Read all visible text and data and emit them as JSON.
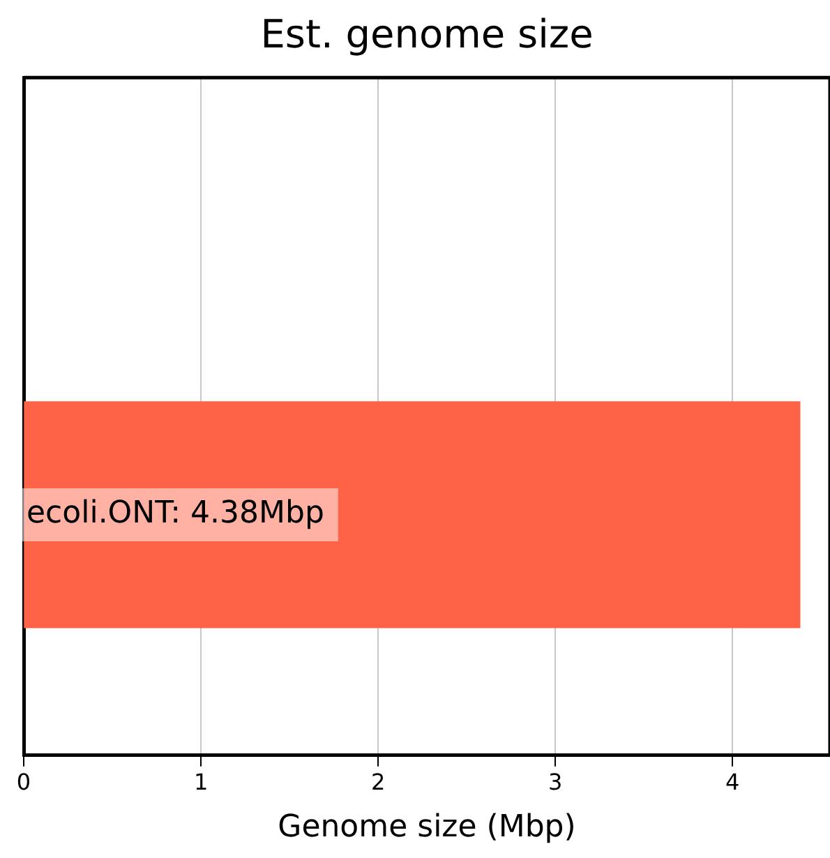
{
  "chart_data": {
    "type": "bar",
    "orientation": "horizontal",
    "title": "Est. genome size",
    "xlabel": "Genome size (Mbp)",
    "categories": [
      null
    ],
    "values": [
      4.38
    ],
    "color": "#ff6347",
    "value_labels": [
      "ecoli.ONT: 4.38Mbp"
    ],
    "xlim": [
      0,
      4.55
    ],
    "xticks": [
      0,
      1,
      2,
      3,
      4
    ],
    "grid": "x",
    "tick_labels": "x"
  }
}
